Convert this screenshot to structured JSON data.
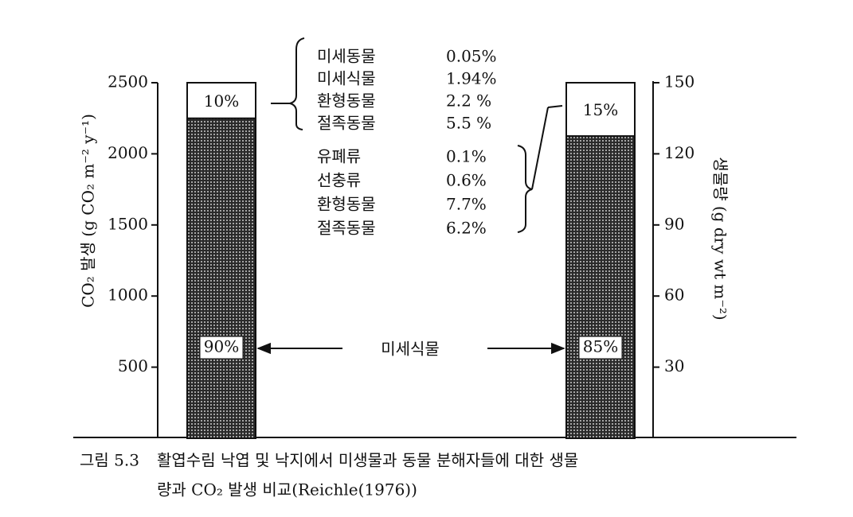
{
  "chart_data": {
    "type": "bar",
    "categories": [
      null,
      null
    ],
    "series": [
      {
        "name": "미세식물",
        "color": "#2a2a2a",
        "values": [
          2250,
          null
        ],
        "value_labels": [
          "90%",
          null
        ]
      },
      {
        "color": "#ffffff",
        "values": [
          250,
          null
        ],
        "value_labels": [
          "10%",
          null
        ]
      },
      {
        "color": "#2a2a2a",
        "axis": "y2",
        "values": [
          null,
          127.5
        ],
        "value_labels": [
          null,
          "85%"
        ]
      },
      {
        "color": "#ffffff",
        "axis": "y2",
        "values": [
          null,
          22.5
        ],
        "value_labels": [
          null,
          "15%"
        ]
      }
    ],
    "ylabel": "CO₂ 발생 (g CO₂ m⁻² y⁻¹)",
    "y2label": "생물량 (g dry wt m⁻²)",
    "ylim": [
      0,
      2500
    ],
    "yticks": [
      500,
      1000,
      1500,
      2000,
      2500
    ],
    "y2lim": [
      0,
      150
    ],
    "y2ticks": [
      30,
      60,
      90,
      120,
      150
    ],
    "fauna_litter": [
      [
        "미세동물",
        "0.05%"
      ],
      [
        "미세식물",
        "1.94%"
      ],
      [
        "환형동물",
        "2.2 %"
      ],
      [
        "절족동물",
        "5.5 %"
      ]
    ],
    "fauna_twigs": [
      [
        "유폐류",
        "0.1%"
      ],
      [
        "선충류",
        "0.6%"
      ],
      [
        "환형동물",
        "7.7%"
      ],
      [
        "절족동물",
        "6.2%"
      ]
    ],
    "caption_number": "그림 5.3",
    "caption_lines": [
      "활엽수림 낙엽 및 낙지에서 미생물과 동물 분해자들에 대한 생물",
      "량과 CO₂ 발생 비교(Reichle(1976))"
    ]
  }
}
